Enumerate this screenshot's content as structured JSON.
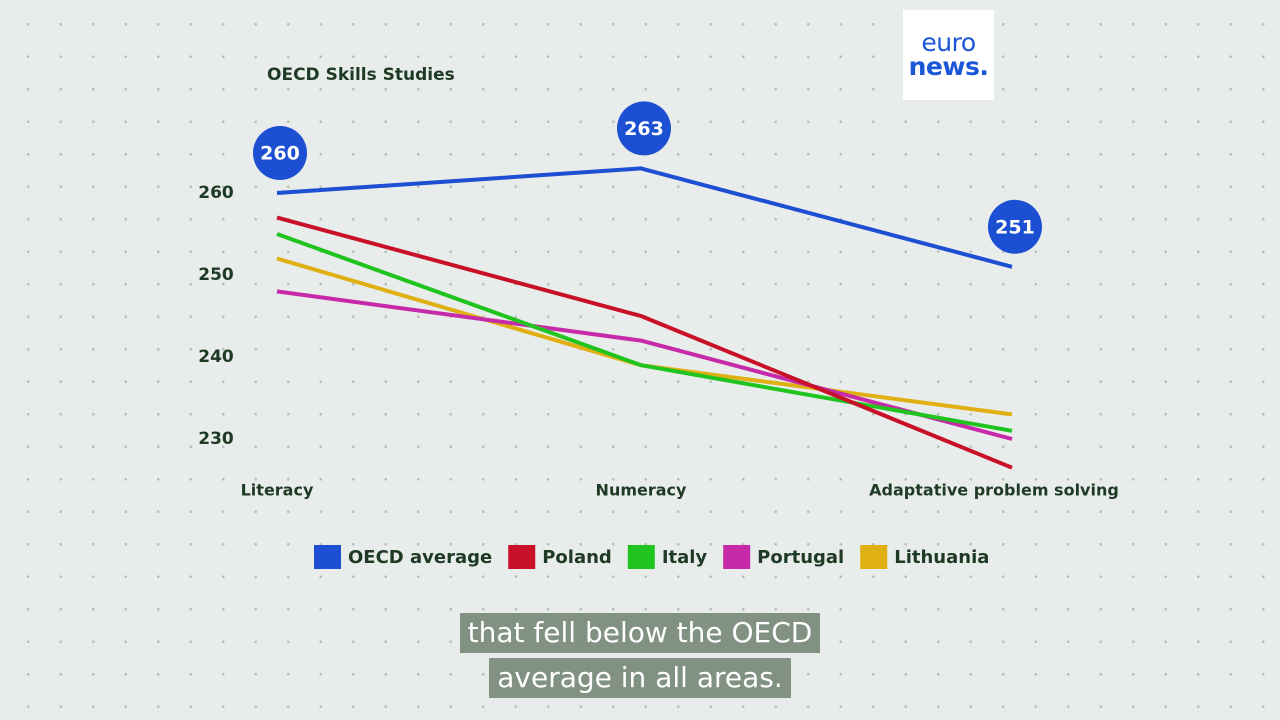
{
  "chart_data": {
    "type": "line",
    "title": "OECD Skills Studies",
    "categories": [
      "Literacy",
      "Numeracy",
      "Adaptative problem solving"
    ],
    "series": [
      {
        "name": "OECD average",
        "color": "#1c4fd2",
        "values": [
          260,
          263,
          251
        ]
      },
      {
        "name": "Poland",
        "color": "#c81028",
        "values": [
          257,
          245,
          226.5
        ]
      },
      {
        "name": "Italy",
        "color": "#1fc41f",
        "values": [
          255,
          239,
          231
        ]
      },
      {
        "name": "Portugal",
        "color": "#c62aa8",
        "values": [
          248,
          242,
          230
        ]
      },
      {
        "name": "Lithuania",
        "color": "#e0b012",
        "values": [
          252,
          239,
          233
        ]
      }
    ],
    "ylim": [
      225,
      265
    ],
    "yticks": [
      230,
      240,
      250,
      260
    ]
  },
  "logo": {
    "line1": "euro",
    "line2": "news."
  },
  "captions": [
    "that fell below the OECD",
    "average in all areas."
  ]
}
